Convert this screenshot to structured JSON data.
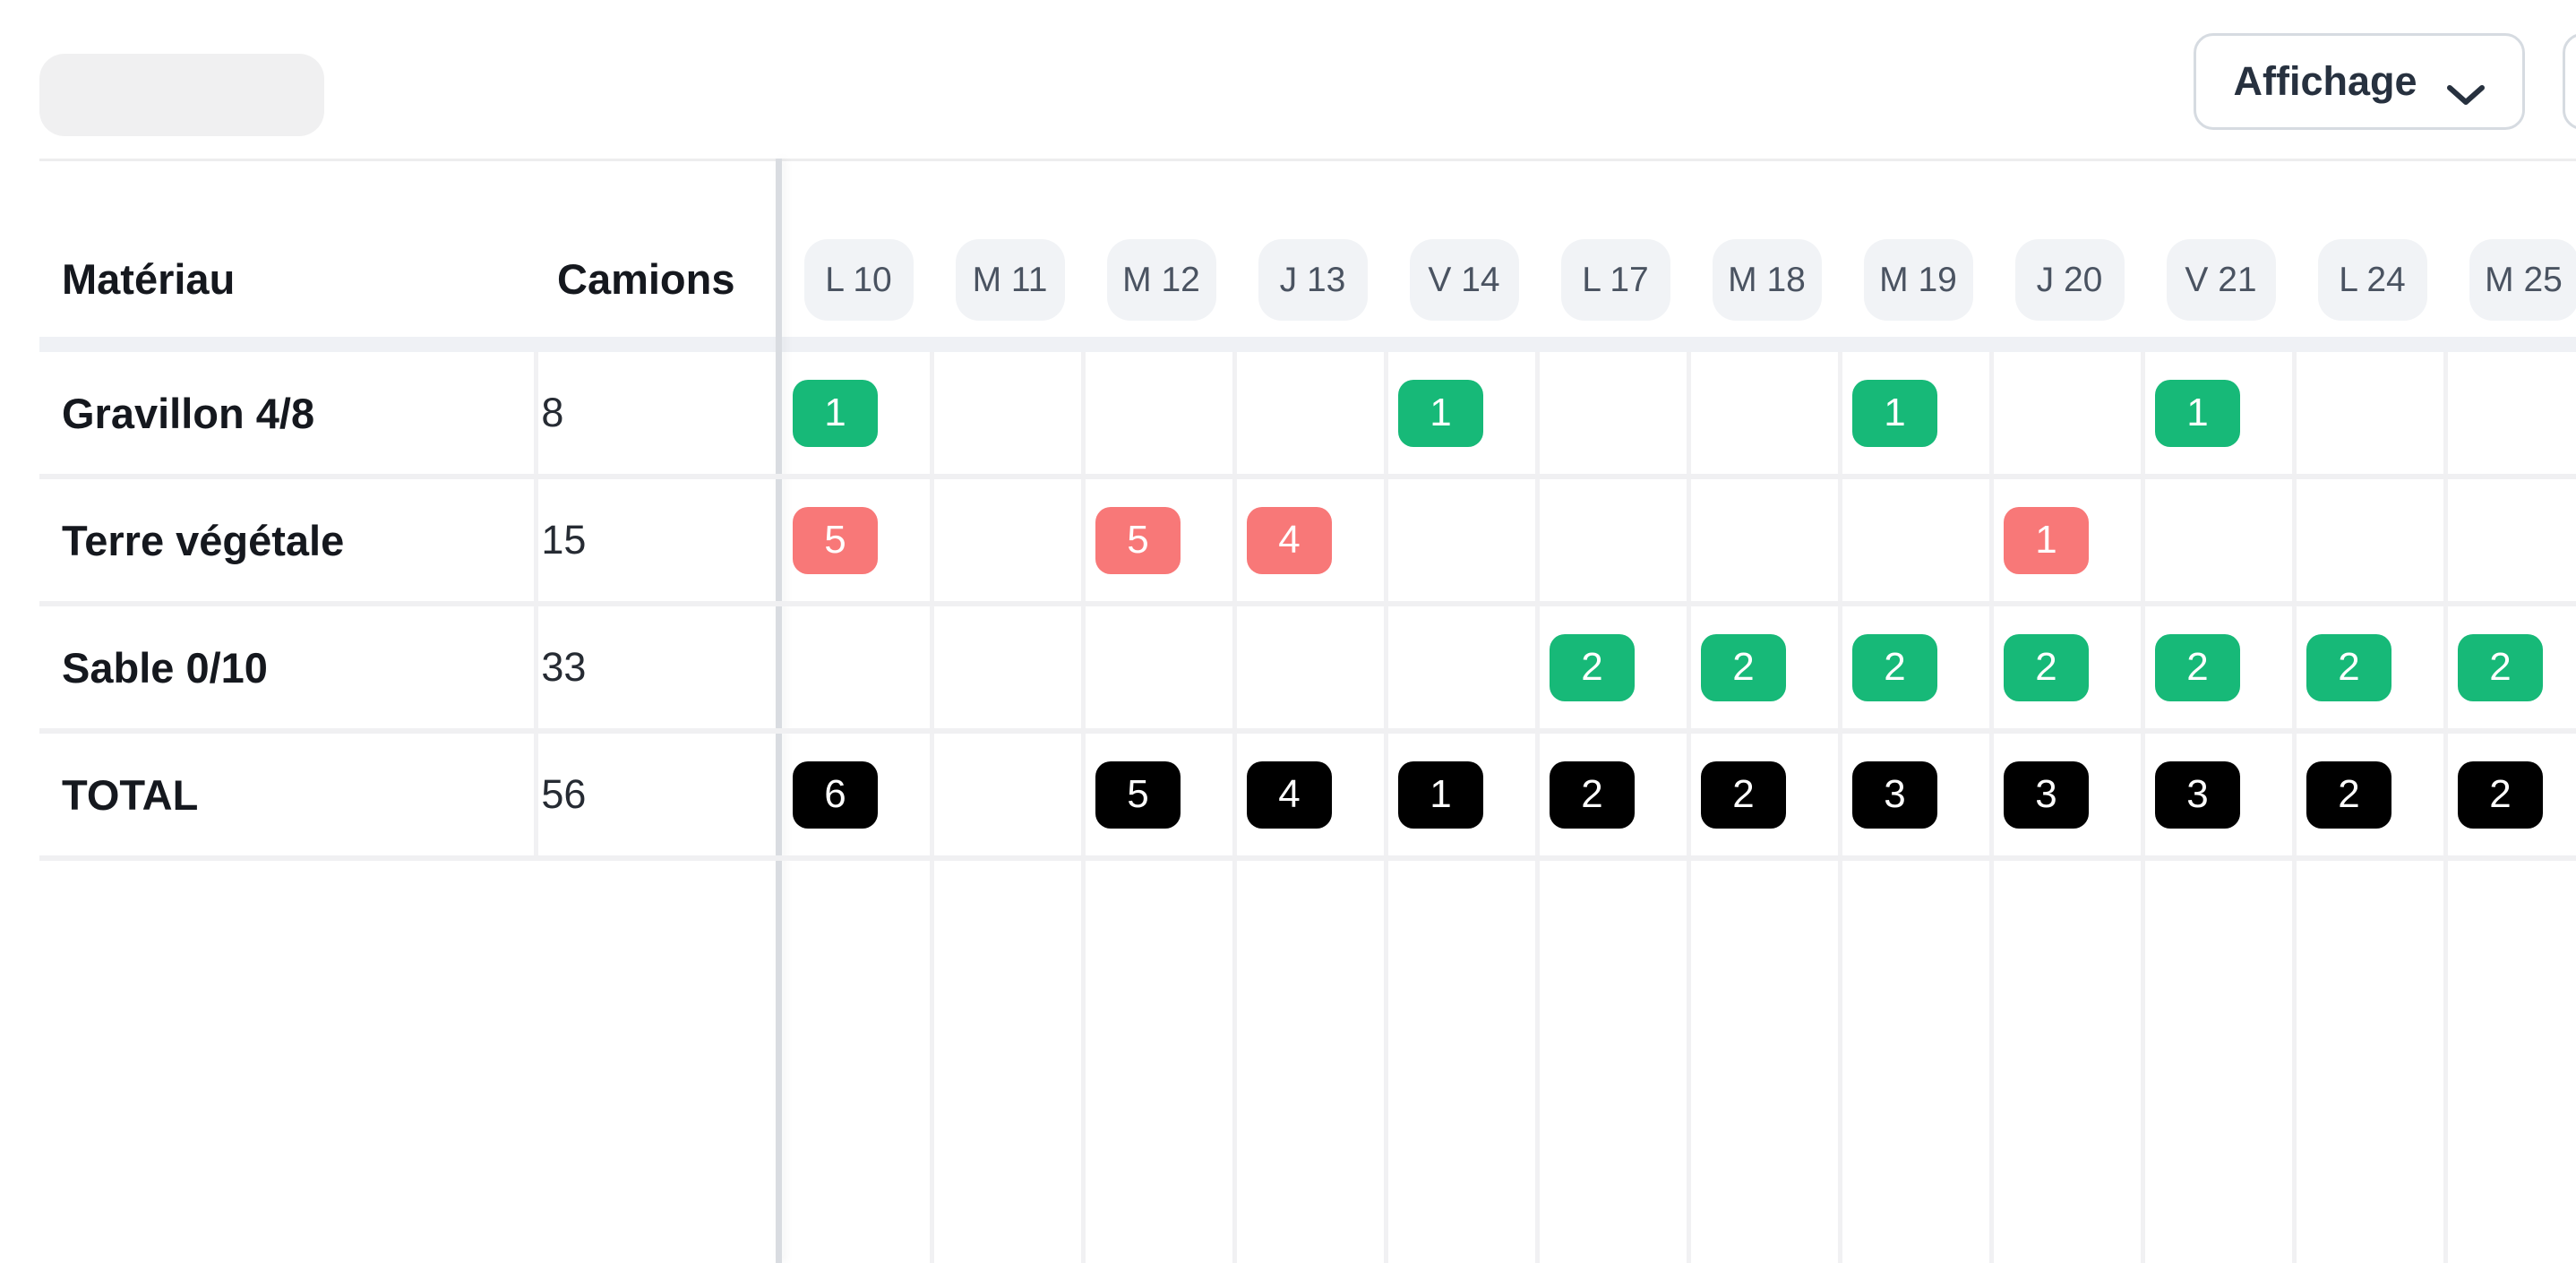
{
  "toolbar": {
    "affichage_label": "Affichage"
  },
  "colors": {
    "green": "#17b978",
    "red": "#f87878",
    "black": "#000000"
  },
  "table": {
    "material_header": "Matériau",
    "camions_header": "Camions",
    "date_columns": [
      "L 10",
      "M 11",
      "M 12",
      "J 13",
      "V 14",
      "L 17",
      "M 18",
      "M 19",
      "J 20",
      "V 21",
      "L 24",
      "M 25"
    ],
    "rows": [
      {
        "material": "Gravillon 4/8",
        "camions": "8",
        "badge_color": "green",
        "cells": [
          "1",
          "",
          "",
          "",
          "1",
          "",
          "",
          "1",
          "",
          "1",
          "",
          ""
        ]
      },
      {
        "material": "Terre végétale",
        "camions": "15",
        "badge_color": "red",
        "cells": [
          "5",
          "",
          "5",
          "4",
          "",
          "",
          "",
          "",
          "1",
          "",
          "",
          ""
        ]
      },
      {
        "material": "Sable 0/10",
        "camions": "33",
        "badge_color": "green",
        "cells": [
          "",
          "",
          "",
          "",
          "",
          "2",
          "2",
          "2",
          "2",
          "2",
          "2",
          "2"
        ]
      },
      {
        "material": "TOTAL",
        "camions": "56",
        "badge_color": "black",
        "is_total": true,
        "cells": [
          "6",
          "",
          "5",
          "4",
          "1",
          "2",
          "2",
          "3",
          "3",
          "3",
          "2",
          "2"
        ]
      }
    ]
  }
}
